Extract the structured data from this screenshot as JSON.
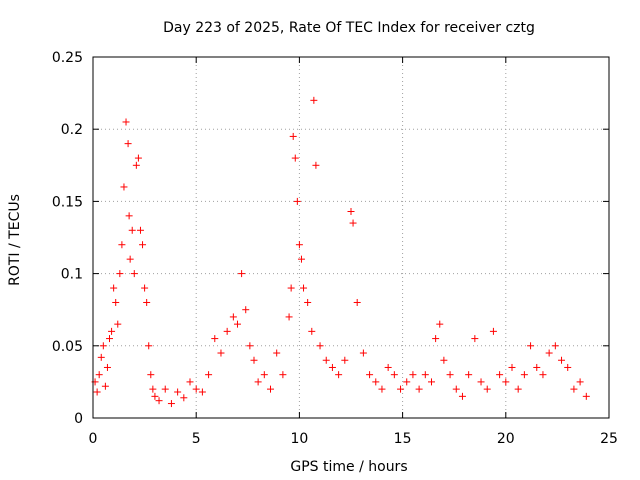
{
  "chart_data": {
    "type": "scatter",
    "title": "Day 223 of 2025, Rate Of TEC Index for receiver cztg",
    "xlabel": "GPS time / hours",
    "ylabel": "ROTI / TECUs",
    "xlim": [
      0,
      25
    ],
    "ylim": [
      0,
      0.25
    ],
    "x_ticks": [
      0,
      5,
      10,
      15,
      20,
      25
    ],
    "y_ticks": [
      0,
      0.05,
      0.1,
      0.15,
      0.2,
      0.25
    ],
    "x_tick_labels": [
      "0",
      "5",
      "10",
      "15",
      "20",
      "25"
    ],
    "y_tick_labels": [
      "0",
      "0.05",
      "0.1",
      "0.15",
      "0.2",
      "0.25"
    ],
    "grid": true,
    "marker": "plus",
    "marker_color": "#ff0000",
    "series": [
      {
        "x": [
          0.1,
          0.2,
          0.3,
          0.4,
          0.5,
          0.6,
          0.7,
          0.8,
          0.9,
          1.0,
          1.1,
          1.2,
          1.3,
          1.4,
          1.5,
          1.6,
          1.7,
          1.75,
          1.8,
          1.9,
          2.0,
          2.1,
          2.2,
          2.3,
          2.4,
          2.5,
          2.6,
          2.7,
          2.8,
          2.9,
          3.0,
          3.2,
          3.5,
          3.8,
          4.1,
          4.4,
          4.7,
          5.0,
          5.3,
          5.6,
          5.9,
          6.2,
          6.5,
          6.8,
          7.0,
          7.2,
          7.4,
          7.6,
          7.8,
          8.0,
          8.3,
          8.6,
          8.9,
          9.2,
          9.5,
          9.6,
          9.7,
          9.8,
          9.9,
          10.0,
          10.1,
          10.2,
          10.4,
          10.6,
          10.7,
          10.8,
          11.0,
          11.3,
          11.6,
          11.9,
          12.2,
          12.5,
          12.6,
          12.8,
          13.1,
          13.4,
          13.7,
          14.0,
          14.3,
          14.6,
          14.9,
          15.2,
          15.5,
          15.8,
          16.1,
          16.4,
          16.6,
          16.8,
          17.0,
          17.3,
          17.6,
          17.9,
          18.2,
          18.5,
          18.8,
          19.1,
          19.4,
          19.7,
          20.0,
          20.3,
          20.6,
          20.9,
          21.2,
          21.5,
          21.8,
          22.1,
          22.4,
          22.7,
          23.0,
          23.3,
          23.6,
          23.9
        ],
        "y": [
          0.025,
          0.018,
          0.03,
          0.042,
          0.05,
          0.022,
          0.035,
          0.055,
          0.06,
          0.09,
          0.08,
          0.065,
          0.1,
          0.12,
          0.16,
          0.205,
          0.19,
          0.14,
          0.11,
          0.13,
          0.1,
          0.175,
          0.18,
          0.13,
          0.12,
          0.09,
          0.08,
          0.05,
          0.03,
          0.02,
          0.015,
          0.012,
          0.02,
          0.01,
          0.018,
          0.014,
          0.025,
          0.02,
          0.018,
          0.03,
          0.055,
          0.045,
          0.06,
          0.07,
          0.065,
          0.1,
          0.075,
          0.05,
          0.04,
          0.025,
          0.03,
          0.02,
          0.045,
          0.03,
          0.07,
          0.09,
          0.195,
          0.18,
          0.15,
          0.12,
          0.11,
          0.09,
          0.08,
          0.06,
          0.22,
          0.175,
          0.05,
          0.04,
          0.035,
          0.03,
          0.04,
          0.143,
          0.135,
          0.08,
          0.045,
          0.03,
          0.025,
          0.02,
          0.035,
          0.03,
          0.02,
          0.025,
          0.03,
          0.02,
          0.03,
          0.025,
          0.055,
          0.065,
          0.04,
          0.03,
          0.02,
          0.015,
          0.03,
          0.055,
          0.025,
          0.02,
          0.06,
          0.03,
          0.025,
          0.035,
          0.02,
          0.03,
          0.05,
          0.035,
          0.03,
          0.045,
          0.05,
          0.04,
          0.035,
          0.02,
          0.025,
          0.015
        ]
      }
    ]
  }
}
